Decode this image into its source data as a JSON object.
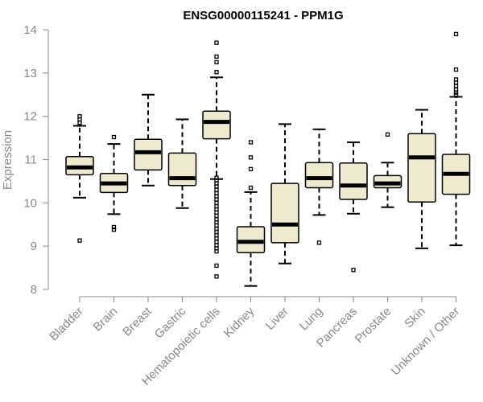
{
  "chart_data": {
    "type": "boxplot",
    "title": "ENSG00000115241 - PPM1G",
    "ylabel": "Expression",
    "xlabel": "",
    "ylim": [
      8,
      14
    ],
    "yticks": [
      8,
      9,
      10,
      11,
      12,
      13,
      14
    ],
    "grid": false,
    "categories": [
      "Bladder",
      "Brain",
      "Breast",
      "Gastric",
      "Hematopoietic cells",
      "Kidney",
      "Liver",
      "Lung",
      "Pancreas",
      "Prostate",
      "Skin",
      "Unknown / Other"
    ],
    "boxes": [
      {
        "min": 10.12,
        "q1": 10.65,
        "median": 10.82,
        "q3": 11.07,
        "max": 11.78,
        "outliers": [
          11.85,
          11.93,
          12.0,
          9.13
        ]
      },
      {
        "min": 9.74,
        "q1": 10.24,
        "median": 10.45,
        "q3": 10.68,
        "max": 11.36,
        "outliers": [
          11.52,
          9.44,
          9.38
        ]
      },
      {
        "min": 10.4,
        "q1": 10.76,
        "median": 11.17,
        "q3": 11.47,
        "max": 12.5,
        "outliers": []
      },
      {
        "min": 9.88,
        "q1": 10.4,
        "median": 10.57,
        "q3": 11.15,
        "max": 11.93,
        "outliers": []
      },
      {
        "min": 10.55,
        "q1": 11.48,
        "median": 11.87,
        "q3": 12.12,
        "max": 12.9,
        "outliers": [
          13.7,
          13.38,
          13.25,
          13.02,
          10.58,
          10.52,
          10.45,
          10.38,
          10.3,
          10.22,
          10.15,
          10.08,
          10.0,
          9.92,
          9.85,
          9.78,
          9.7,
          9.62,
          9.55,
          9.48,
          9.4,
          9.33,
          9.25,
          9.18,
          9.1,
          9.02,
          8.95,
          8.88,
          8.55,
          8.3
        ]
      },
      {
        "min": 8.08,
        "q1": 8.85,
        "median": 9.1,
        "q3": 9.45,
        "max": 10.25,
        "outliers": [
          11.4,
          11.05,
          10.78,
          10.35
        ]
      },
      {
        "min": 8.6,
        "q1": 9.08,
        "median": 9.5,
        "q3": 10.45,
        "max": 11.82,
        "outliers": []
      },
      {
        "min": 9.72,
        "q1": 10.35,
        "median": 10.57,
        "q3": 10.93,
        "max": 11.7,
        "outliers": [
          9.08
        ]
      },
      {
        "min": 9.75,
        "q1": 10.08,
        "median": 10.4,
        "q3": 10.92,
        "max": 11.4,
        "outliers": [
          8.45
        ]
      },
      {
        "min": 9.9,
        "q1": 10.35,
        "median": 10.45,
        "q3": 10.63,
        "max": 10.93,
        "outliers": [
          11.58
        ]
      },
      {
        "min": 8.95,
        "q1": 10.02,
        "median": 11.05,
        "q3": 11.6,
        "max": 12.15,
        "outliers": []
      },
      {
        "min": 9.02,
        "q1": 10.2,
        "median": 10.67,
        "q3": 11.12,
        "max": 12.45,
        "outliers": [
          13.9,
          13.08,
          12.85,
          12.78,
          12.7,
          12.62,
          12.55,
          12.5
        ]
      }
    ]
  }
}
